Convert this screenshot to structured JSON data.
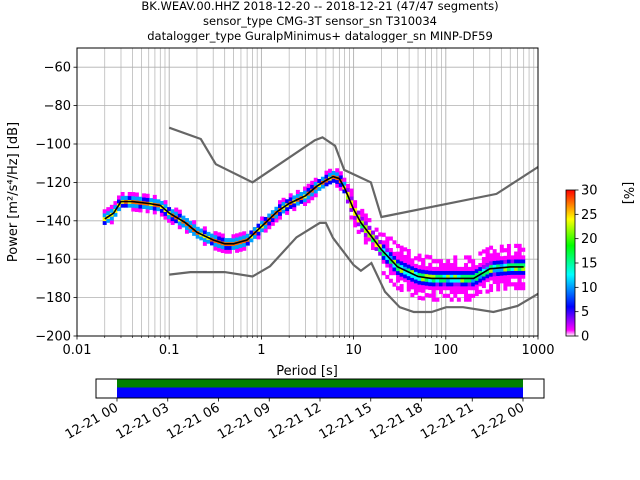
{
  "title": {
    "line1": "BK.WEAV.00.HHZ   2018-12-20 -- 2018-12-21  (47/47 segments)",
    "line2": "sensor_type CMG-3T sensor_sn T310034",
    "line3": "datalogger_type GuralpMinimus+ datalogger_sn MINP-DF59"
  },
  "chart_data": {
    "type": "heatmap",
    "title": "BK.WEAV.00.HHZ   2018-12-20 -- 2018-12-21  (47/47 segments)",
    "xlabel": "Period [s]",
    "ylabel": "Power [m²/s⁴/Hz] [dB]",
    "x_scale": "log",
    "xlim": [
      0.01,
      1000
    ],
    "ylim": [
      -200,
      -50
    ],
    "grid": true,
    "xticks": [
      0.01,
      0.1,
      1,
      10,
      100,
      1000
    ],
    "xtick_labels": [
      "0.01",
      "0.1",
      "1",
      "10",
      "100",
      "1000"
    ],
    "yticks": [
      -200,
      -180,
      -160,
      -140,
      -120,
      -100,
      -80,
      -60
    ],
    "colorbar": {
      "label": "[%]",
      "range": [
        0,
        30
      ],
      "ticks": [
        0,
        5,
        10,
        15,
        20,
        25,
        30
      ],
      "colors": [
        "#ffffff",
        "#ff00ff",
        "#0000ff",
        "#00ffff",
        "#00ff00",
        "#ffff00",
        "#ff0000"
      ]
    },
    "mode_curve": {
      "x": [
        0.02,
        0.025,
        0.03,
        0.04,
        0.06,
        0.08,
        0.1,
        0.15,
        0.2,
        0.3,
        0.4,
        0.5,
        0.7,
        1,
        1.5,
        2,
        3,
        4,
        5,
        6,
        7,
        8,
        10,
        12,
        15,
        20,
        30,
        50,
        70,
        100,
        150,
        200,
        300,
        500,
        700
      ],
      "y": [
        -139,
        -136,
        -130,
        -130,
        -131,
        -132,
        -136,
        -141,
        -146,
        -150,
        -152,
        -152,
        -150,
        -143,
        -135,
        -131,
        -127,
        -122,
        -119,
        -117,
        -118,
        -123,
        -134,
        -141,
        -147,
        -155,
        -164,
        -169,
        -170,
        -170,
        -170,
        -170,
        -165,
        -164,
        -164
      ]
    },
    "noise_models": [
      {
        "name": "upper",
        "x": [
          0.1,
          0.22,
          0.32,
          0.8,
          3.8,
          4.6,
          6.3,
          7.9,
          15.4,
          20,
          354.8,
          1000
        ],
        "y": [
          -91.5,
          -97.4,
          -110.5,
          -120,
          -98,
          -96.5,
          -101,
          -113.5,
          -120,
          -138,
          -126,
          -112
        ]
      },
      {
        "name": "lower",
        "x": [
          0.1,
          0.17,
          0.4,
          0.8,
          1.24,
          2.4,
          4.3,
          5,
          6,
          10,
          12,
          15.6,
          21.9,
          31.6,
          45,
          70,
          101,
          154,
          328,
          600,
          1000
        ],
        "y": [
          -168,
          -166.7,
          -166.7,
          -169,
          -163.7,
          -148.6,
          -141.1,
          -141.1,
          -149,
          -163,
          -166,
          -162,
          -177,
          -185,
          -187.5,
          -187.5,
          -185,
          -185,
          -187.5,
          -184.4,
          -178
        ]
      }
    ],
    "time_coverage": {
      "tick_labels": [
        "12-21 00",
        "12-21 03",
        "12-21 06",
        "12-21 09",
        "12-21 12",
        "12-21 15",
        "12-21 18",
        "12-21 21",
        "12-22 00"
      ],
      "data_start": "12-21 00",
      "data_end": "12-22 00",
      "colors": [
        "#008000",
        "#0000ff"
      ]
    }
  }
}
